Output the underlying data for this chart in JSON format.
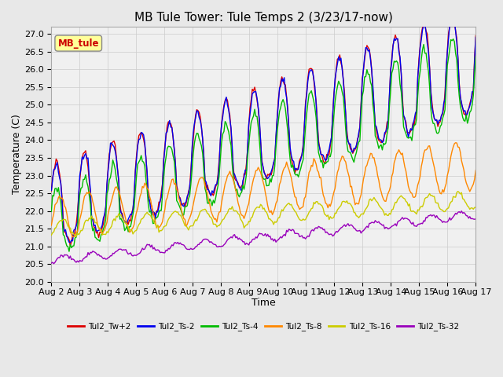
{
  "title": "MB Tule Tower: Tule Temps 2 (3/23/17-now)",
  "xlabel": "Time",
  "ylabel": "Temperature (C)",
  "ylim": [
    20.0,
    27.2
  ],
  "yticks": [
    20.0,
    20.5,
    21.0,
    21.5,
    22.0,
    22.5,
    23.0,
    23.5,
    24.0,
    24.5,
    25.0,
    25.5,
    26.0,
    26.5,
    27.0
  ],
  "x_labels": [
    "Aug 2",
    "Aug 3",
    "Aug 4",
    "Aug 5",
    "Aug 6",
    "Aug 7",
    "Aug 8",
    "Aug 9",
    "Aug 10",
    "Aug 11",
    "Aug 12",
    "Aug 13",
    "Aug 14",
    "Aug 15",
    "Aug 16",
    "Aug 17"
  ],
  "legend_entries": [
    "Tul2_Tw+2",
    "Tul2_Ts-2",
    "Tul2_Ts-4",
    "Tul2_Ts-8",
    "Tul2_Ts-16",
    "Tul2_Ts-32"
  ],
  "legend_colors": [
    "#dd0000",
    "#0000ee",
    "#00bb00",
    "#ff8800",
    "#cccc00",
    "#9900bb"
  ],
  "bg_color": "#e8e8e8",
  "plot_bg_color": "#f0f0f0",
  "grid_color": "#cccccc",
  "title_fontsize": 11,
  "label_fontsize": 9,
  "tick_fontsize": 8,
  "mb_tule_box_color": "#ffff99",
  "mb_tule_text_color": "#cc0000",
  "n_days": 15,
  "n_pts_per_day": 24
}
